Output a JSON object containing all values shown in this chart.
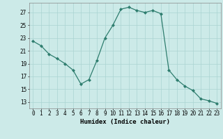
{
  "x": [
    0,
    1,
    2,
    3,
    4,
    5,
    6,
    7,
    8,
    9,
    10,
    11,
    12,
    13,
    14,
    15,
    16,
    17,
    18,
    19,
    20,
    21,
    22,
    23
  ],
  "y": [
    22.5,
    21.8,
    20.5,
    19.8,
    19.0,
    18.0,
    15.8,
    16.5,
    19.5,
    23.0,
    25.0,
    27.5,
    27.8,
    27.3,
    27.0,
    27.3,
    26.8,
    18.0,
    16.5,
    15.5,
    14.8,
    13.5,
    13.2,
    12.8
  ],
  "line_color": "#2e7d6e",
  "marker": "D",
  "marker_size": 2.0,
  "bg_color": "#cceae8",
  "grid_color": "#aad4d2",
  "xlabel": "Humidex (Indice chaleur)",
  "ylim": [
    12,
    28.5
  ],
  "xlim": [
    -0.5,
    23.5
  ],
  "yticks": [
    13,
    15,
    17,
    19,
    21,
    23,
    25,
    27
  ],
  "xticks": [
    0,
    1,
    2,
    3,
    4,
    5,
    6,
    7,
    8,
    9,
    10,
    11,
    12,
    13,
    14,
    15,
    16,
    17,
    18,
    19,
    20,
    21,
    22,
    23
  ],
  "xlabel_fontsize": 6.5,
  "tick_fontsize": 5.5,
  "spine_color": "#888888"
}
